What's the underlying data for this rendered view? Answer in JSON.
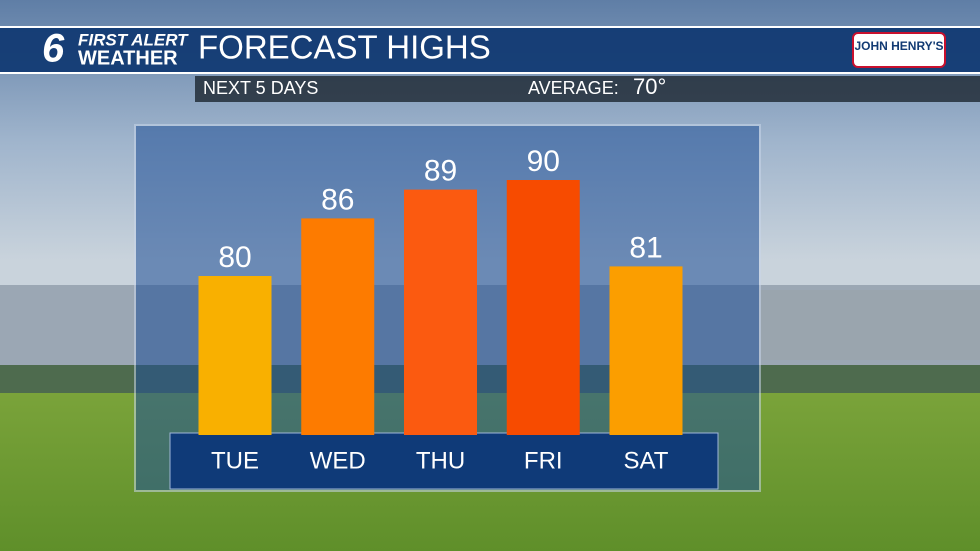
{
  "branding": {
    "channel": "6",
    "line1": "FIRST ALERT",
    "line2": "WEATHER",
    "sponsor": "JOHN HENRY'S"
  },
  "chart_data": {
    "type": "bar",
    "title": "FORECAST HIGHS",
    "subtitle": "NEXT 5 DAYS",
    "average_label": "AVERAGE:",
    "average_value": "70°",
    "categories": [
      "TUE",
      "WED",
      "THU",
      "FRI",
      "SAT"
    ],
    "values": [
      80,
      86,
      89,
      90,
      81
    ],
    "colors": [
      "#f9b000",
      "#fd7b00",
      "#fb5a10",
      "#f74b00",
      "#fb9e00"
    ]
  }
}
